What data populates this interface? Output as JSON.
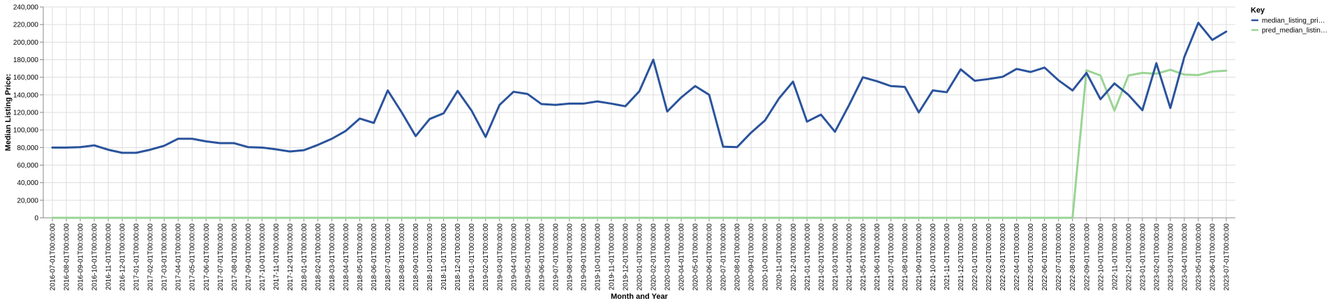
{
  "chart_data": {
    "type": "line",
    "xlabel": "Month and Year",
    "ylabel": "Median Listing Price:",
    "ylim": [
      0,
      240000
    ],
    "y_ticks": [
      0,
      20000,
      40000,
      60000,
      80000,
      100000,
      120000,
      140000,
      160000,
      180000,
      200000,
      220000,
      240000
    ],
    "y_tick_labels": [
      "0",
      "20,000",
      "40,000",
      "60,000",
      "80,000",
      "100,000",
      "120,000",
      "140,000",
      "160,000",
      "180,000",
      "200,000",
      "220,000",
      "240,000"
    ],
    "grid": true,
    "legend": {
      "title": "Key",
      "placement": "right",
      "entries": [
        {
          "label": "median_listing_pri…",
          "color": "#2a539c"
        },
        {
          "label": "pred_median_listin…",
          "color": "#9ad494"
        }
      ]
    },
    "x": [
      "2016-07-01T00:00:00",
      "2016-08-01T00:00:00",
      "2016-09-01T00:00:00",
      "2016-10-01T00:00:00",
      "2016-11-01T00:00:00",
      "2016-12-01T00:00:00",
      "2017-01-01T00:00:00",
      "2017-02-01T00:00:00",
      "2017-03-01T00:00:00",
      "2017-04-01T00:00:00",
      "2017-05-01T00:00:00",
      "2017-06-01T00:00:00",
      "2017-07-01T00:00:00",
      "2017-08-01T00:00:00",
      "2017-09-01T00:00:00",
      "2017-10-01T00:00:00",
      "2017-11-01T00:00:00",
      "2017-12-01T00:00:00",
      "2018-01-01T00:00:00",
      "2018-02-01T00:00:00",
      "2018-03-01T00:00:00",
      "2018-04-01T00:00:00",
      "2018-05-01T00:00:00",
      "2018-06-01T00:00:00",
      "2018-07-01T00:00:00",
      "2018-08-01T00:00:00",
      "2018-09-01T00:00:00",
      "2018-10-01T00:00:00",
      "2018-11-01T00:00:00",
      "2018-12-01T00:00:00",
      "2019-01-01T00:00:00",
      "2019-02-01T00:00:00",
      "2019-03-01T00:00:00",
      "2019-04-01T00:00:00",
      "2019-05-01T00:00:00",
      "2019-06-01T00:00:00",
      "2019-07-01T00:00:00",
      "2019-08-01T00:00:00",
      "2019-09-01T00:00:00",
      "2019-10-01T00:00:00",
      "2019-11-01T00:00:00",
      "2019-12-01T00:00:00",
      "2020-01-01T00:00:00",
      "2020-02-01T00:00:00",
      "2020-03-01T00:00:00",
      "2020-04-01T00:00:00",
      "2020-05-01T00:00:00",
      "2020-06-01T00:00:00",
      "2020-07-01T00:00:00",
      "2020-08-01T00:00:00",
      "2020-09-01T00:00:00",
      "2020-10-01T00:00:00",
      "2020-11-01T00:00:00",
      "2020-12-01T00:00:00",
      "2021-01-01T00:00:00",
      "2021-02-01T00:00:00",
      "2021-03-01T00:00:00",
      "2021-04-01T00:00:00",
      "2021-05-01T00:00:00",
      "2021-06-01T00:00:00",
      "2021-07-01T00:00:00",
      "2021-08-01T00:00:00",
      "2021-09-01T00:00:00",
      "2021-10-01T00:00:00",
      "2021-11-01T00:00:00",
      "2021-12-01T00:00:00",
      "2022-01-01T00:00:00",
      "2022-02-01T00:00:00",
      "2022-03-01T00:00:00",
      "2022-04-01T00:00:00",
      "2022-05-01T00:00:00",
      "2022-06-01T00:00:00",
      "2022-07-01T00:00:00",
      "2022-08-01T00:00:00",
      "2022-09-01T00:00:00",
      "2022-10-01T00:00:00",
      "2022-11-01T00:00:00",
      "2022-12-01T00:00:00",
      "2023-01-01T00:00:00",
      "2023-02-01T00:00:00",
      "2023-03-01T00:00:00",
      "2023-04-01T00:00:00",
      "2023-05-01T00:00:00",
      "2023-06-01T00:00:00",
      "2023-07-01T00:00:00"
    ],
    "series": [
      {
        "name": "median_listing_pri…",
        "color": "#2a539c",
        "values": [
          80000,
          80000,
          80500,
          82500,
          77500,
          74000,
          74000,
          77500,
          82000,
          90000,
          90000,
          87000,
          85000,
          85000,
          80500,
          80000,
          78000,
          75500,
          77000,
          83000,
          90000,
          99000,
          113000,
          108000,
          145000,
          120000,
          93000,
          112500,
          119000,
          144500,
          122000,
          92000,
          128500,
          143500,
          141000,
          129500,
          128500,
          130000,
          130000,
          132500,
          130000,
          127000,
          144000,
          180000,
          121000,
          137000,
          150000,
          140000,
          81000,
          80500,
          97000,
          111000,
          136000,
          155000,
          109500,
          117500,
          98000,
          128000,
          160000,
          155500,
          150000,
          149000,
          120000,
          145000,
          143000,
          169000,
          156000,
          158000,
          160500,
          169500,
          166000,
          171000,
          156500,
          145000,
          165000,
          135000,
          153000,
          140000,
          122500,
          176000,
          125000,
          183000,
          222000,
          202500,
          212000
        ]
      },
      {
        "name": "pred_median_listin…",
        "color": "#9ad494",
        "values": [
          0,
          0,
          0,
          0,
          0,
          0,
          0,
          0,
          0,
          0,
          0,
          0,
          0,
          0,
          0,
          0,
          0,
          0,
          0,
          0,
          0,
          0,
          0,
          0,
          0,
          0,
          0,
          0,
          0,
          0,
          0,
          0,
          0,
          0,
          0,
          0,
          0,
          0,
          0,
          0,
          0,
          0,
          0,
          0,
          0,
          0,
          0,
          0,
          0,
          0,
          0,
          0,
          0,
          0,
          0,
          0,
          0,
          0,
          0,
          0,
          0,
          0,
          0,
          0,
          0,
          0,
          0,
          0,
          0,
          0,
          0,
          0,
          0,
          0,
          168000,
          162000,
          122000,
          162000,
          165000,
          164000,
          168500,
          163000,
          162500,
          166500,
          167500
        ]
      }
    ]
  }
}
